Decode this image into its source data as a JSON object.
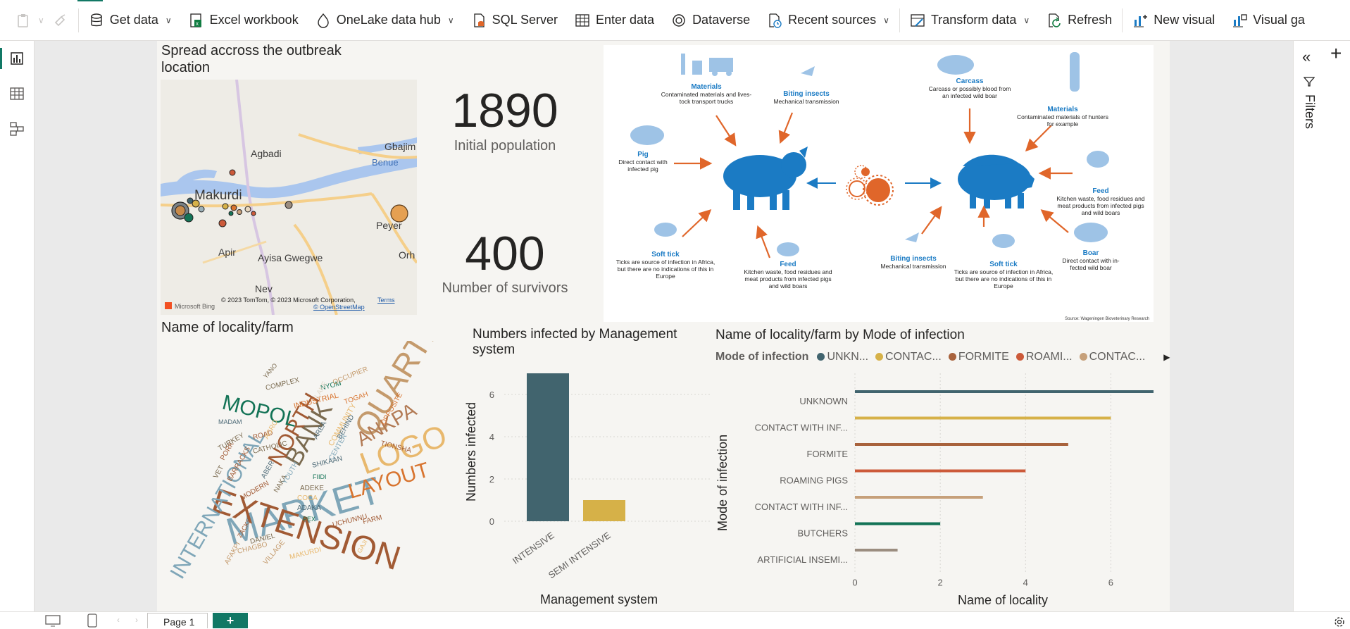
{
  "ribbon": {
    "items": [
      {
        "label": "Get data",
        "icon": "database-icon",
        "chevron": true
      },
      {
        "label": "Excel workbook",
        "icon": "excel-icon",
        "chevron": false
      },
      {
        "label": "OneLake data hub",
        "icon": "onelake-icon",
        "chevron": true
      },
      {
        "label": "SQL Server",
        "icon": "sql-server-icon",
        "chevron": false
      },
      {
        "label": "Enter data",
        "icon": "table-icon",
        "chevron": false
      },
      {
        "label": "Dataverse",
        "icon": "dataverse-icon",
        "chevron": false
      },
      {
        "label": "Recent sources",
        "icon": "recent-sources-icon",
        "chevron": true
      },
      {
        "label": "Transform data",
        "icon": "transform-icon",
        "chevron": true
      },
      {
        "label": "Refresh",
        "icon": "refresh-icon",
        "chevron": false
      },
      {
        "label": "New visual",
        "icon": "new-visual-icon",
        "chevron": false
      },
      {
        "label": "Visual ga",
        "icon": "visual-gallery-icon",
        "chevron": false
      }
    ]
  },
  "filters_label": "Filters",
  "page_tab": "Page 1",
  "add_page": "+",
  "map": {
    "title": "Spread accross the outbreak location",
    "places": [
      "Agbadi",
      "Gbajim",
      "Benue",
      "Makurdi",
      "Peyer",
      "Apir",
      "Ayisa Gwegwe",
      "Orh",
      "Nev"
    ],
    "copyright": "© 2023 TomTom, © 2023 Microsoft Corporation,",
    "terms": "Terms",
    "osm": "© OpenStreetMap",
    "brand": "Microsoft Bing"
  },
  "cards": [
    {
      "value": "1890",
      "label": "Initial population"
    },
    {
      "value": "400",
      "label": "Number of survivors"
    }
  ],
  "diagram": {
    "source": "Source: Wageningen Bioveterinary Research",
    "labels": [
      {
        "title": "Materials",
        "text": [
          "Contaminated materials and lives-",
          "tock transport trucks"
        ]
      },
      {
        "title": "Biting insects",
        "text": [
          "Mechanical transmission"
        ]
      },
      {
        "title": "Pig",
        "text": [
          "Direct contact with",
          "infected pig"
        ]
      },
      {
        "title": "Soft tick",
        "text": [
          "Ticks are source of infection in Africa,",
          "but there are no indications of this in",
          "Europe"
        ]
      },
      {
        "title": "Feed",
        "text": [
          "Kitchen waste, food residues and",
          "meat products from infected pigs",
          "and wild boars"
        ]
      },
      {
        "title": "Carcass",
        "text": [
          "Carcass or possibly blood from",
          "an infected wild boar"
        ]
      },
      {
        "title": "Materials",
        "text": [
          "Contaminated materials of hunters",
          "for example"
        ]
      },
      {
        "title": "Feed",
        "text": [
          "Kitchen waste, food residues and",
          "meat products from infected pigs",
          "and wild boars"
        ]
      },
      {
        "title": "Boar",
        "text": [
          "Direct contact with in-",
          "fected wild boar"
        ]
      },
      {
        "title": "Soft tick",
        "text": [
          "Ticks are source of infection in Africa,",
          "but there are no indications of this in",
          "Europe"
        ]
      },
      {
        "title": "Biting insects",
        "text": [
          "Mechanical transmission"
        ]
      }
    ]
  },
  "wordcloud": {
    "title": "Name of locality/farm",
    "words": [
      {
        "text": "MARKET",
        "color": "#7fa6b8"
      },
      {
        "text": "EXTENSION",
        "color": "#a15a34"
      },
      {
        "text": "QUARTERS",
        "color": "#c49a6c"
      },
      {
        "text": "LOGO",
        "color": "#e8b86d"
      },
      {
        "text": "LAYOUT",
        "color": "#d8742f"
      },
      {
        "text": "ANKPA",
        "color": "#b27a54"
      },
      {
        "text": "BANK",
        "color": "#7a6a4f"
      },
      {
        "text": "NORTH",
        "color": "#a15a34"
      },
      {
        "text": "MOPOL",
        "color": "#137356"
      },
      {
        "text": "INTERNATIONAL",
        "color": "#7fa6b8"
      },
      {
        "text": "INDUSTRIAL",
        "color": "#d8742f"
      },
      {
        "text": "COMPLEX",
        "color": "#7a6a4f"
      },
      {
        "text": "NYOM",
        "color": "#137356"
      },
      {
        "text": "OCCUPIER",
        "color": "#c49a6c"
      },
      {
        "text": "TOGAH",
        "color": "#d8742f"
      },
      {
        "text": "YANO",
        "color": "#7a6a4f"
      },
      {
        "text": "MADAM",
        "color": "#4e6b78"
      },
      {
        "text": "ROAD",
        "color": "#a15a34"
      },
      {
        "text": "TURKEY",
        "color": "#7a6a4f"
      },
      {
        "text": "CATHOLIC",
        "color": "#7a6a4f"
      },
      {
        "text": "AGRO",
        "color": "#e8b86d"
      },
      {
        "text": "AREA",
        "color": "#4e6b78"
      },
      {
        "text": "COMMUNITY",
        "color": "#e8b86d"
      },
      {
        "text": "BEHIND",
        "color": "#4e6b78"
      },
      {
        "text": "CENTER",
        "color": "#7fa6b8"
      },
      {
        "text": "SHIKAAN",
        "color": "#4e6b78"
      },
      {
        "text": "TIONSHA",
        "color": "#a15a34"
      },
      {
        "text": "OPPOSITE",
        "color": "#d8742f"
      },
      {
        "text": "FIIDI",
        "color": "#137356"
      },
      {
        "text": "ADEKE",
        "color": "#7a6a4f"
      },
      {
        "text": "COCA",
        "color": "#e8b86d"
      },
      {
        "text": "ADAKA",
        "color": "#4e6b78"
      },
      {
        "text": "PEX",
        "color": "#137356"
      },
      {
        "text": "UCHUNNU",
        "color": "#a15a34"
      },
      {
        "text": "FARM",
        "color": "#a15a34"
      },
      {
        "text": "DANIEL",
        "color": "#7a6a4f"
      },
      {
        "text": "CHAGBO",
        "color": "#c49a6c"
      },
      {
        "text": "VILLAGE",
        "color": "#c49a6c"
      },
      {
        "text": "MAKURDI",
        "color": "#e8b86d"
      },
      {
        "text": "GAJI",
        "color": "#e8b86d"
      },
      {
        "text": "AFAKPI",
        "color": "#c49a6c"
      },
      {
        "text": "ZACKS",
        "color": "#a15a34"
      },
      {
        "text": "MODERN",
        "color": "#a15a34"
      },
      {
        "text": "BARRACKS",
        "color": "#a15a34"
      },
      {
        "text": "PORK",
        "color": "#a15a34"
      },
      {
        "text": "VET",
        "color": "#7a6a4f"
      },
      {
        "text": "NAKA",
        "color": "#7a6a4f"
      },
      {
        "text": "YOUTH",
        "color": "#7fa6b8"
      },
      {
        "text": "ABER",
        "color": "#4e6b78"
      },
      {
        "text": "LAKE",
        "color": "#e0d7c8"
      }
    ]
  },
  "mgmt_chart": {
    "title": "Numbers infected by Management system",
    "chart_data": {
      "type": "bar",
      "categories": [
        "INTENSIVE",
        "SEMI INTENSIVE"
      ],
      "values": [
        7,
        1
      ],
      "colors": [
        "#41646e",
        "#d6b148"
      ],
      "xlabel": "Management system",
      "ylabel": "Numbers infected",
      "yticks": [
        0,
        2,
        4,
        6
      ],
      "ylim": [
        0,
        7
      ]
    }
  },
  "mode_chart": {
    "title": "Name of locality/farm by Mode of infection",
    "legend_title": "Mode of infection",
    "legend": [
      {
        "name": "UNKN...",
        "color": "#41646e"
      },
      {
        "name": "CONTAC...",
        "color": "#d6b148"
      },
      {
        "name": "FORMITE",
        "color": "#a8623c"
      },
      {
        "name": "ROAMI...",
        "color": "#cc5a3a"
      },
      {
        "name": "CONTAC...",
        "color": "#c6a07a"
      }
    ],
    "chart_data": {
      "type": "bar",
      "orientation": "horizontal",
      "categories": [
        "UNKNOWN",
        "CONTACT WITH INF...",
        "FORMITE",
        "ROAMING PIGS",
        "CONTACT WITH INF...",
        "BUTCHERS",
        "ARTIFICIAL INSEMI..."
      ],
      "values": [
        7,
        6,
        5,
        4,
        3,
        2,
        1
      ],
      "colors": [
        "#41646e",
        "#d6b148",
        "#a8623c",
        "#cc5a3a",
        "#c6a07a",
        "#137356",
        "#9b8d80"
      ],
      "xlabel": "Name of locality",
      "ylabel": "Mode of infection",
      "xticks": [
        0,
        2,
        4,
        6
      ],
      "xlim": [
        0,
        7
      ]
    }
  }
}
